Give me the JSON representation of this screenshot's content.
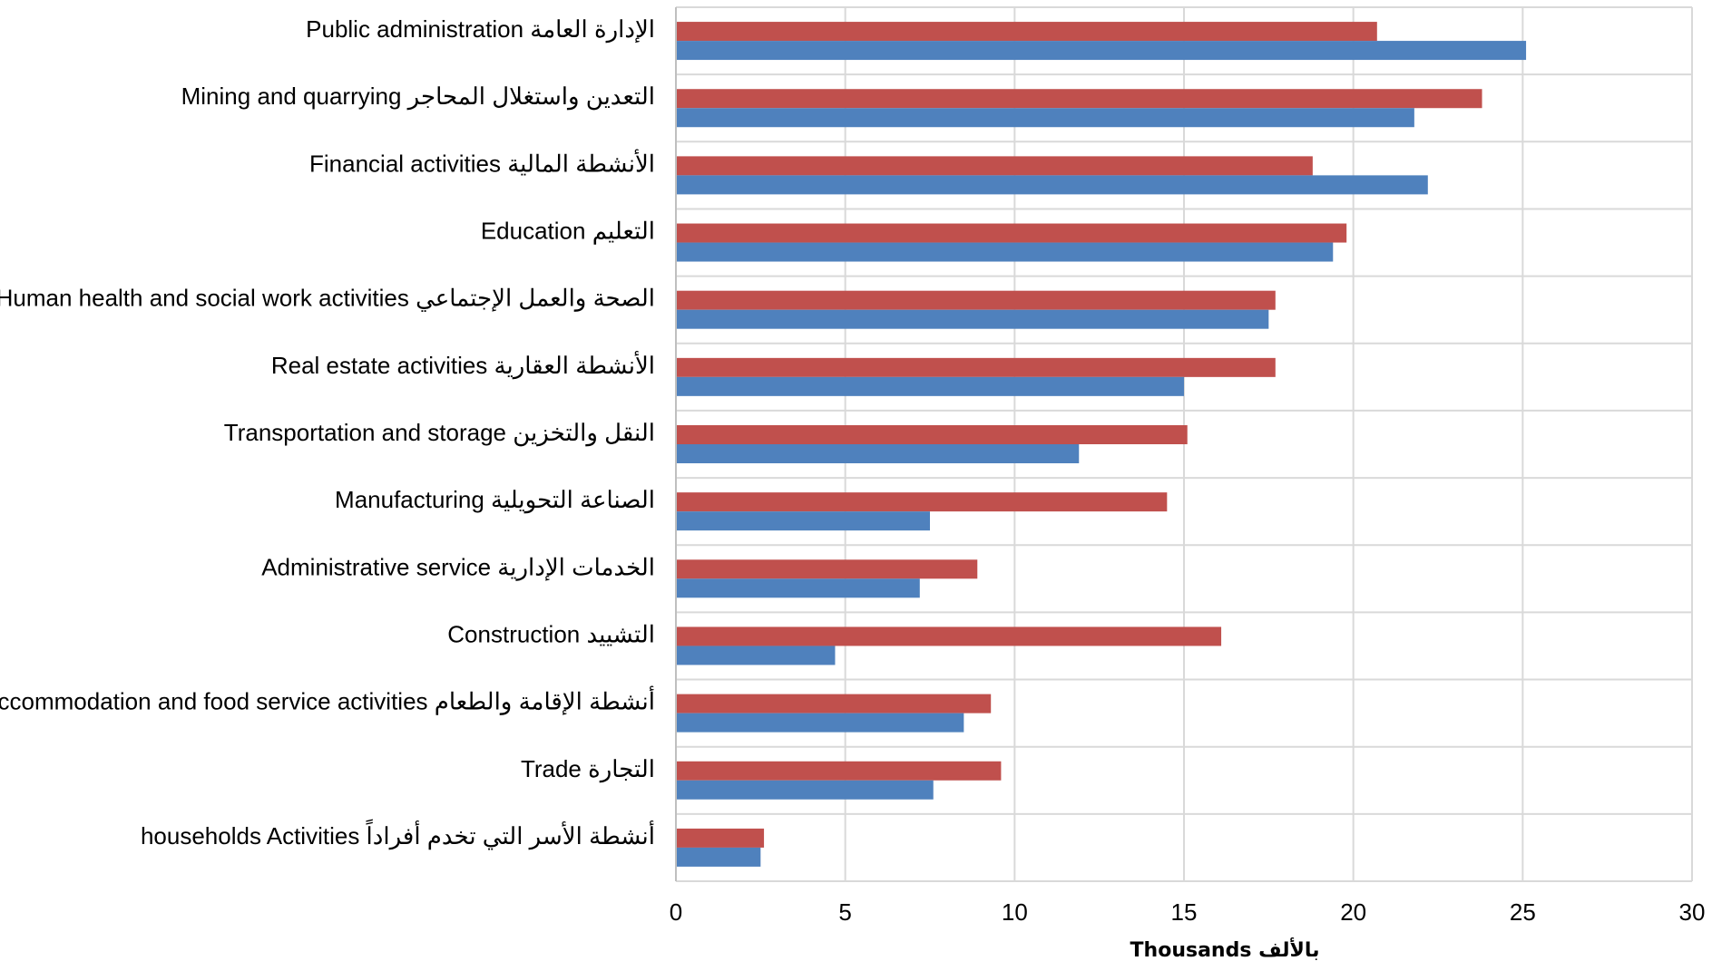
{
  "chart_data": {
    "type": "bar",
    "orientation": "horizontal",
    "categories": [
      "Public administration الإدارة العامة",
      "Mining and quarrying التعدين واستغلال المحاجر",
      "Financial activities الأنشطة المالية",
      "Education التعليم",
      "Human health and social work activities الصحة والعمل الإجتماعي",
      "Real estate activities الأنشطة العقارية",
      "Transportation and storage النقل والتخزين",
      "Manufacturing الصناعة التحويلية",
      "Administrative service الخدمات الإدارية",
      "Construction التشييد",
      "Accommodation and food service activities أنشطة الإقامة والطعام",
      "Trade التجارة",
      "households Activities أنشطة الأسر التي تخدم أفراداً"
    ],
    "series": [
      {
        "color": "#c0504d",
        "values": [
          20.7,
          23.8,
          18.8,
          19.8,
          17.7,
          17.7,
          15.1,
          14.5,
          8.9,
          16.1,
          9.3,
          9.6,
          2.6
        ]
      },
      {
        "color": "#4f81bd",
        "values": [
          25.1,
          21.8,
          22.2,
          19.4,
          17.5,
          15.0,
          11.9,
          7.5,
          7.2,
          4.7,
          8.5,
          7.6,
          2.5
        ]
      }
    ],
    "xlim": [
      0,
      30
    ],
    "xticks": [
      "0",
      "5",
      "10",
      "15",
      "20",
      "25",
      "30"
    ],
    "xlabel": "Thousands بالألف",
    "ylabel": "",
    "grid": true,
    "grid_color": "#d9d9d9",
    "legend": "none"
  }
}
